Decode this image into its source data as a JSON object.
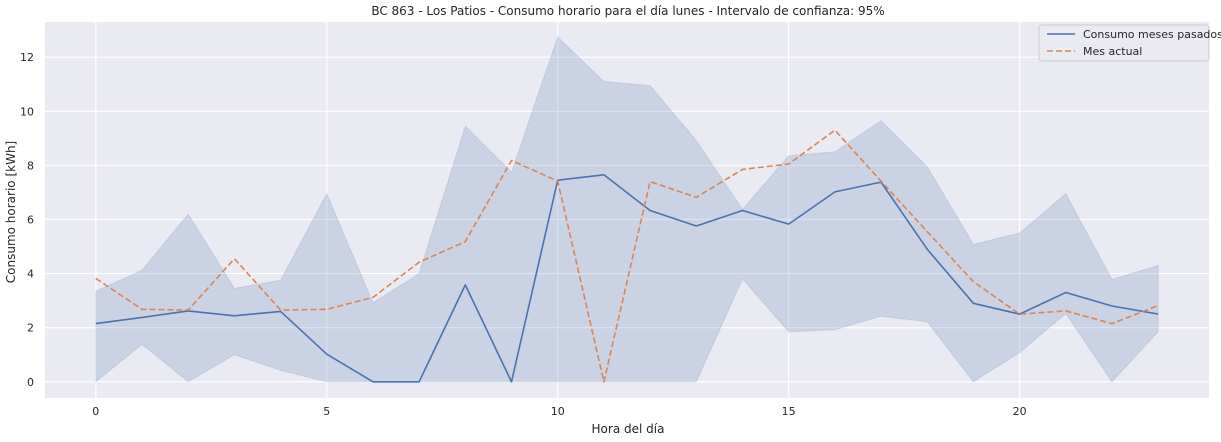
{
  "chart_data": {
    "type": "line",
    "title": "BC 863 - Los Patios - Consumo horario para el día lunes - Intervalo de confianza: 95%",
    "xlabel": "Hora del día",
    "ylabel": "Consumo horario [kWh]",
    "xlim": [
      -1.1,
      24.1
    ],
    "ylim": [
      -0.6,
      13.3
    ],
    "xticks": [
      0,
      5,
      10,
      15,
      20
    ],
    "yticks": [
      0,
      2,
      4,
      6,
      8,
      10,
      12
    ],
    "grid": true,
    "legend_position": "top-right",
    "x": [
      0,
      1,
      2,
      3,
      4,
      5,
      6,
      7,
      8,
      9,
      10,
      11,
      12,
      13,
      14,
      15,
      16,
      17,
      18,
      19,
      20,
      21,
      22,
      23
    ],
    "series": [
      {
        "name": "Consumo meses pasados",
        "style": "solid",
        "color": "#4c72b0",
        "values": [
          2.15,
          2.38,
          2.62,
          2.44,
          2.6,
          1.02,
          0.0,
          0.0,
          3.58,
          0.0,
          7.45,
          7.65,
          6.33,
          5.76,
          6.33,
          5.83,
          7.02,
          7.38,
          4.9,
          2.9,
          2.5,
          3.3,
          2.8,
          2.5
        ]
      },
      {
        "name": "Mes actual",
        "style": "dashed",
        "color": "#dd8452",
        "values": [
          3.82,
          2.68,
          2.65,
          4.55,
          2.65,
          2.68,
          3.12,
          4.42,
          5.18,
          8.18,
          7.42,
          0.0,
          7.4,
          6.82,
          7.85,
          8.05,
          9.3,
          7.42,
          5.55,
          3.7,
          2.5,
          2.62,
          2.15,
          2.82
        ]
      }
    ],
    "confidence_band": {
      "series": "Consumo meses pasados",
      "level": "95%",
      "color": "#4c72b0",
      "upper": [
        3.35,
        4.12,
        6.2,
        3.45,
        3.75,
        6.95,
        2.92,
        4.0,
        9.45,
        7.75,
        12.75,
        11.1,
        10.95,
        8.92,
        6.38,
        8.35,
        8.5,
        9.65,
        7.95,
        5.08,
        5.5,
        6.95,
        3.78,
        4.3
      ],
      "lower": [
        0.0,
        1.38,
        0.0,
        1.0,
        0.42,
        0.0,
        0.0,
        0.0,
        0.0,
        0.0,
        0.0,
        0.0,
        0.0,
        0.0,
        3.8,
        1.85,
        1.92,
        2.42,
        2.22,
        0.0,
        1.08,
        2.52,
        0.0,
        1.85
      ]
    }
  }
}
